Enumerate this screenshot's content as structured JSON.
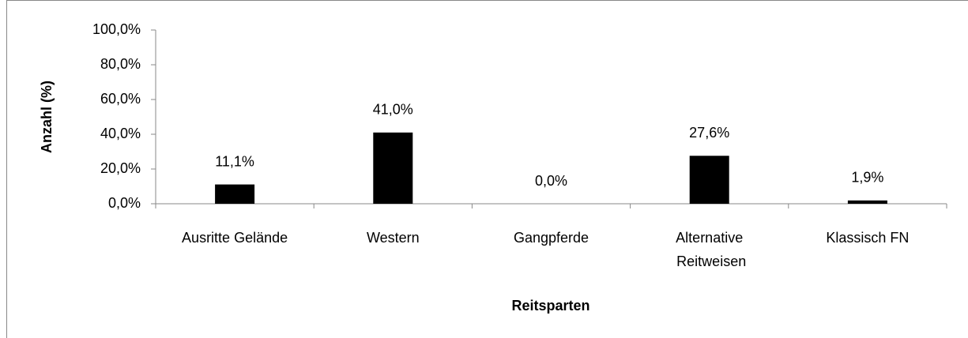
{
  "chart_data": {
    "type": "bar",
    "categories": [
      "Ausritte Gelände",
      "Western",
      "Gangpferde",
      "Alternative Reitweisen",
      "Klassisch FN"
    ],
    "values": [
      11.1,
      41.0,
      0.0,
      27.6,
      1.9
    ],
    "value_labels": [
      "11,1%",
      "41,0%",
      "0,0%",
      "27,6%",
      "1,9%"
    ],
    "color": "#000000",
    "ylim": [
      0,
      100
    ],
    "yticks": [
      {
        "value": 0,
        "label": "0,0%"
      },
      {
        "value": 20,
        "label": "20,0%"
      },
      {
        "value": 40,
        "label": "40,0%"
      },
      {
        "value": 60,
        "label": "60,0%"
      },
      {
        "value": 80,
        "label": "80,0%"
      },
      {
        "value": 100,
        "label": "100,0%"
      }
    ],
    "y_label": "Anzahl (%)",
    "x_label": "Reitsparten",
    "grid": false
  }
}
